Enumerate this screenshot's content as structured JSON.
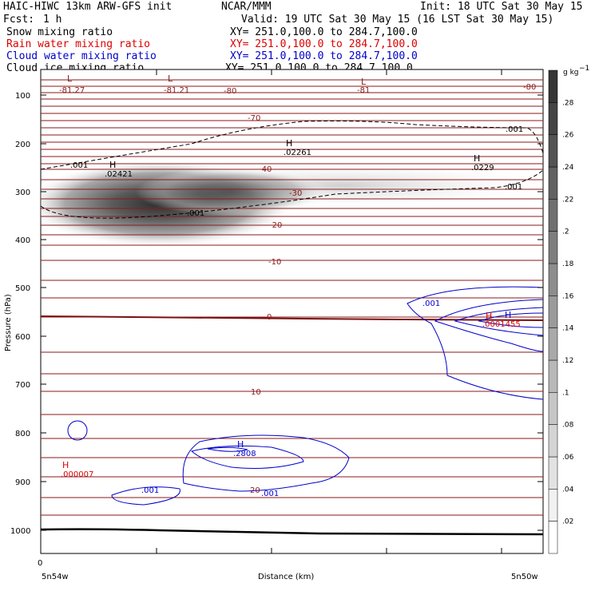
{
  "header": {
    "model": "HAIC-HIWC 13km ARW-GFS init",
    "org": "NCAR/MMM",
    "init": "Init: 18 UTC Sat 30 May 15",
    "fcst_label": "Fcst:",
    "fcst_value": "1 h",
    "valid": "Valid: 19 UTC Sat 30 May 15 (16 LST Sat 30 May 15)"
  },
  "fields": [
    {
      "name": "Snow mixing ratio",
      "xy": "XY= 251.0,100.0 to 284.7,100.0",
      "color": "#000000"
    },
    {
      "name": "Rain water mixing ratio",
      "xy": "XY= 251.0,100.0 to 284.7,100.0",
      "color": "#dd0000"
    },
    {
      "name": "Cloud water mixing ratio",
      "xy": "XY= 251.0,100.0 to 284.7,100.0",
      "color": "#0000cc"
    },
    {
      "name": "Cloud ice mixing ratio",
      "xy": "XY= 251.0,100.0 to 284.7,100.0",
      "color": "#000000"
    }
  ],
  "colorbar": {
    "unit": "g kg",
    "unit_exp": "−1",
    "ticks": [
      ".02",
      ".04",
      ".06",
      ".08",
      ".1",
      ".12",
      ".14",
      ".16",
      ".18",
      ".2",
      ".22",
      ".24",
      ".26",
      ".28"
    ]
  },
  "axes": {
    "ylabel": "Pressure (hPa)",
    "xlabel": "Distance (km)",
    "x_start_label": "5n54w",
    "x_end_label": "5n50w",
    "x_tick0": "0"
  },
  "chart_data": {
    "type": "vertical cross-section (contour + shaded)",
    "y_axis": {
      "label": "Pressure (hPa)",
      "ticks": [
        100,
        200,
        300,
        400,
        500,
        600,
        700,
        800,
        900,
        1000
      ],
      "range": [
        50,
        1050
      ]
    },
    "x_axis": {
      "label": "Distance (km)",
      "ticks": [
        "0"
      ],
      "endpoints": [
        "5n54w",
        "5n50w"
      ]
    },
    "shaded_field": {
      "name": "Snow mixing ratio",
      "unit": "g kg-1",
      "range": [
        0.0,
        0.29
      ],
      "max_region": {
        "pressure_hPa": 315,
        "approx_value": 0.28
      }
    },
    "temperature_contours": [
      {
        "label": "-81.27",
        "p": 110
      },
      {
        "label": "-81.21",
        "p": 110
      },
      {
        "label": "-80",
        "p": 110
      },
      {
        "label": "-81",
        "p": 110
      },
      {
        "label": "-80",
        "p": 105
      },
      {
        "label": "-70",
        "p": 170
      },
      {
        "label": "-40",
        "p": 255
      },
      {
        "label": "-30",
        "p": 305
      },
      {
        "label": "-20",
        "p": 365
      },
      {
        "label": "-10",
        "p": 450
      },
      {
        "label": "0",
        "p": 560
      },
      {
        "label": "10",
        "p": 715
      },
      {
        "label": "20",
        "p": 910
      }
    ],
    "extrema_labels": [
      {
        "kind": "L",
        "text": "",
        "p": 85,
        "color": "#8b1a1a"
      },
      {
        "kind": "L",
        "text": "",
        "p": 85,
        "color": "#8b1a1a"
      },
      {
        "kind": "L",
        "text": "",
        "p": 85,
        "color": "#8b1a1a"
      },
      {
        "kind": "H",
        "text": ".02421",
        "p": 260,
        "color": "#000000"
      },
      {
        "kind": "H",
        "text": ".02261",
        "p": 200,
        "color": "#000000"
      },
      {
        "kind": "H",
        "text": ".0229",
        "p": 250,
        "color": "#000000"
      },
      {
        "kind": "H",
        "text": ".0001455",
        "p": 570,
        "color": "#dd0000"
      },
      {
        "kind": "H",
        "text": ".2808",
        "p": 830,
        "color": "#0000cc"
      },
      {
        "kind": "H",
        "text": ".000007",
        "p": 875,
        "color": "#dd0000"
      }
    ],
    "contour_value_labels": [
      ".001",
      ".001",
      ".001",
      ".001",
      ".001",
      ".001",
      ".001"
    ]
  }
}
